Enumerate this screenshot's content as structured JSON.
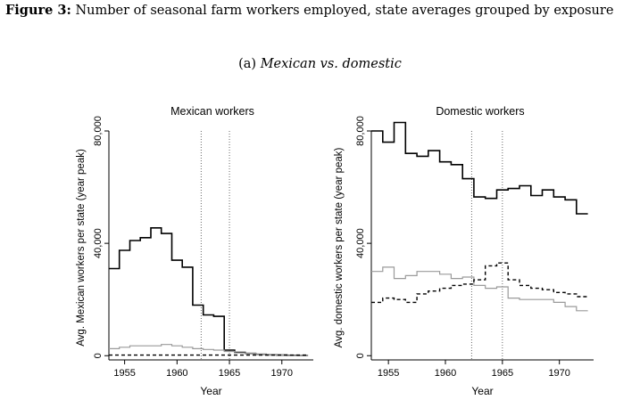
{
  "figure": {
    "label": "Figure 3:",
    "title": "Number of seasonal farm workers employed, state averages grouped by exposure",
    "subcaption_prefix": "(a)",
    "subcaption_title": "Mexican vs. domestic"
  },
  "chart_data": [
    {
      "type": "line",
      "step": true,
      "title": "Mexican workers",
      "xlabel": "Year",
      "ylabel": "Avg. Mexican workers per state (year peak)",
      "xlim": [
        1953.5,
        1973
      ],
      "ylim": [
        -1500,
        80000
      ],
      "xticks": [
        1955,
        1960,
        1965,
        1970
      ],
      "xtick_labels": [
        "1955",
        "1960",
        "1965",
        "1970"
      ],
      "yticks": [
        0,
        40000,
        80000
      ],
      "ytick_labels": [
        "0",
        "40,000",
        "80,000"
      ],
      "vlines": [
        1962.3,
        1965
      ],
      "series": [
        {
          "style": "solid-black",
          "x": [
            1954,
            1955,
            1956,
            1957,
            1958,
            1959,
            1960,
            1961,
            1962,
            1963,
            1964,
            1965,
            1966,
            1967,
            1968,
            1969,
            1970,
            1971,
            1972
          ],
          "y": [
            31000,
            37500,
            41000,
            42000,
            45500,
            43500,
            34000,
            31500,
            18000,
            14500,
            14000,
            2000,
            1200,
            800,
            500,
            300,
            200,
            150,
            100
          ]
        },
        {
          "style": "solid-gray",
          "x": [
            1954,
            1955,
            1956,
            1957,
            1958,
            1959,
            1960,
            1961,
            1962,
            1963,
            1964,
            1965,
            1966,
            1967,
            1968,
            1969,
            1970,
            1971,
            1972
          ],
          "y": [
            2500,
            3000,
            3500,
            3500,
            3500,
            4000,
            3500,
            3000,
            2500,
            2200,
            2000,
            1500,
            1000,
            800,
            500,
            300,
            200,
            100,
            100
          ]
        },
        {
          "style": "dashed-black",
          "x": [
            1954,
            1955,
            1956,
            1957,
            1958,
            1959,
            1960,
            1961,
            1962,
            1963,
            1964,
            1965,
            1966,
            1967,
            1968,
            1969,
            1970,
            1971,
            1972
          ],
          "y": [
            200,
            200,
            200,
            200,
            200,
            200,
            200,
            200,
            200,
            200,
            200,
            200,
            200,
            200,
            200,
            200,
            200,
            200,
            200
          ]
        }
      ]
    },
    {
      "type": "line",
      "step": true,
      "title": "Domestic workers",
      "xlabel": "Year",
      "ylabel": "Avg. domestic workers per state (year peak)",
      "xlim": [
        1953.5,
        1973
      ],
      "ylim": [
        -1500,
        80000
      ],
      "xticks": [
        1955,
        1960,
        1965,
        1970
      ],
      "xtick_labels": [
        "1955",
        "1960",
        "1965",
        "1970"
      ],
      "yticks": [
        0,
        40000,
        80000
      ],
      "ytick_labels": [
        "0",
        "40,000",
        "80,000"
      ],
      "vlines": [
        1962.3,
        1965
      ],
      "series": [
        {
          "style": "solid-black",
          "x": [
            1954,
            1955,
            1956,
            1957,
            1958,
            1959,
            1960,
            1961,
            1962,
            1963,
            1964,
            1965,
            1966,
            1967,
            1968,
            1969,
            1970,
            1971,
            1972
          ],
          "y": [
            80000,
            76000,
            83000,
            72000,
            71000,
            73000,
            69000,
            68000,
            63000,
            56500,
            56000,
            59000,
            59500,
            60500,
            57000,
            59000,
            56500,
            55500,
            50500
          ]
        },
        {
          "style": "solid-gray",
          "x": [
            1954,
            1955,
            1956,
            1957,
            1958,
            1959,
            1960,
            1961,
            1962,
            1963,
            1964,
            1965,
            1966,
            1967,
            1968,
            1969,
            1970,
            1971,
            1972
          ],
          "y": [
            30000,
            31500,
            27500,
            28500,
            30000,
            30000,
            29000,
            27500,
            28000,
            25000,
            24000,
            24500,
            20500,
            20000,
            20000,
            20000,
            19000,
            17500,
            16000
          ]
        },
        {
          "style": "dashed-black",
          "x": [
            1954,
            1955,
            1956,
            1957,
            1958,
            1959,
            1960,
            1961,
            1962,
            1963,
            1964,
            1965,
            1966,
            1967,
            1968,
            1969,
            1970,
            1971,
            1972
          ],
          "y": [
            19000,
            20500,
            20000,
            19000,
            22000,
            23000,
            24000,
            25000,
            25500,
            27000,
            32000,
            33000,
            27000,
            25000,
            24000,
            23500,
            22500,
            22000,
            21000
          ]
        }
      ]
    }
  ]
}
